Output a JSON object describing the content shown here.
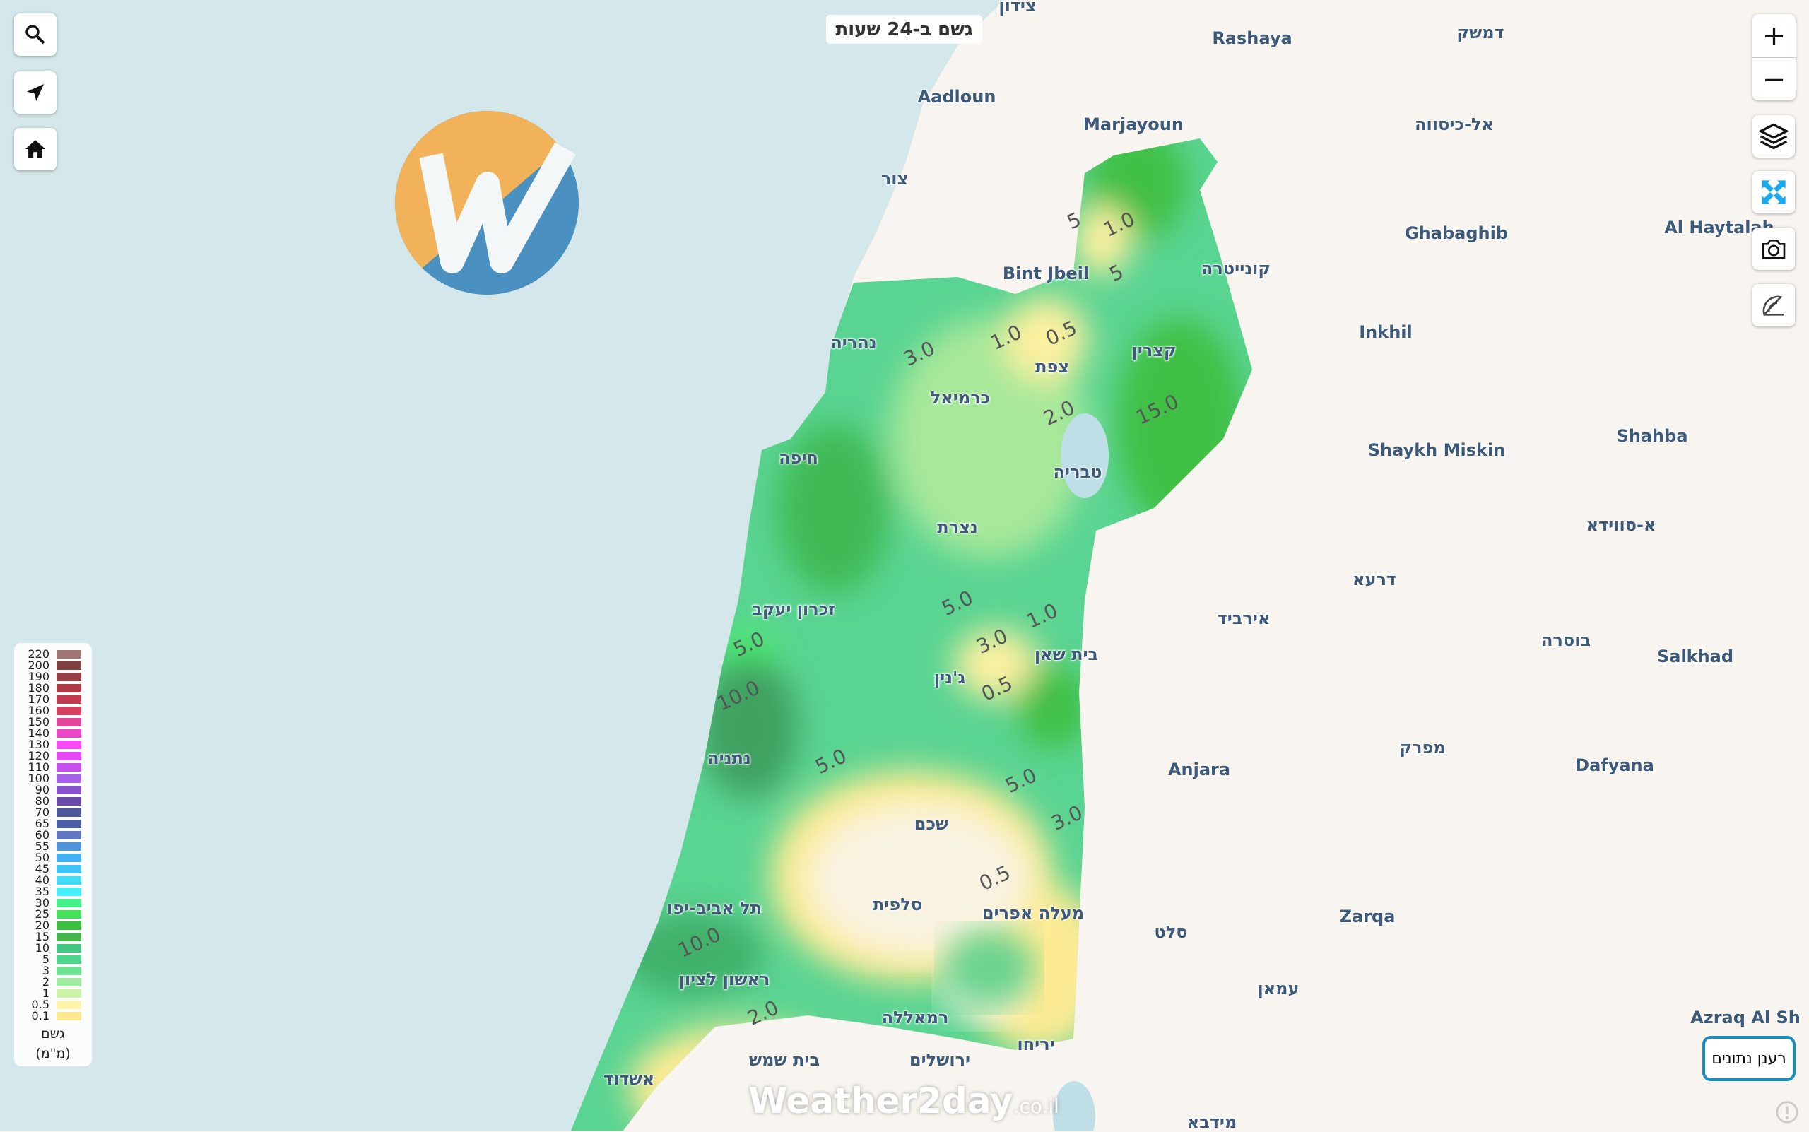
{
  "title": "גשם ב-24 שעות",
  "colors": {
    "sea": "#d4e7ea",
    "land": "#f8f4ef",
    "accent": "#1a8dc0",
    "fullscreen_icon": "#1aaaf0"
  },
  "left_controls": [
    {
      "icon": "search-icon"
    },
    {
      "icon": "locate-arrow-icon"
    },
    {
      "icon": "home-icon"
    }
  ],
  "right_controls": {
    "zoom_in": "+",
    "zoom_out": "−",
    "buttons": [
      {
        "icon": "layers-icon"
      },
      {
        "icon": "fullscreen-icon"
      },
      {
        "icon": "camera-icon"
      },
      {
        "icon": "protractor-icon"
      }
    ]
  },
  "legend": {
    "title": "גשם",
    "unit": "(מ\"מ)",
    "items": [
      {
        "v": "220",
        "c": "#a27575"
      },
      {
        "v": "200",
        "c": "#80403f"
      },
      {
        "v": "190",
        "c": "#9a3e45"
      },
      {
        "v": "180",
        "c": "#ae3a48"
      },
      {
        "v": "170",
        "c": "#c23a4f"
      },
      {
        "v": "160",
        "c": "#d6405e"
      },
      {
        "v": "150",
        "c": "#e2449a"
      },
      {
        "v": "140",
        "c": "#ec46c6"
      },
      {
        "v": "130",
        "c": "#fb4af8"
      },
      {
        "v": "120",
        "c": "#e548f4"
      },
      {
        "v": "110",
        "c": "#c94ef0"
      },
      {
        "v": "100",
        "c": "#a55fe8"
      },
      {
        "v": "90",
        "c": "#8854cc"
      },
      {
        "v": "80",
        "c": "#6c4aa8"
      },
      {
        "v": "70",
        "c": "#4d569a"
      },
      {
        "v": "65",
        "c": "#4a5ea8"
      },
      {
        "v": "60",
        "c": "#6177c0"
      },
      {
        "v": "55",
        "c": "#4f94d8"
      },
      {
        "v": "50",
        "c": "#3fb0f4"
      },
      {
        "v": "45",
        "c": "#3ec4f6"
      },
      {
        "v": "40",
        "c": "#40dcfa"
      },
      {
        "v": "35",
        "c": "#44eefa"
      },
      {
        "v": "30",
        "c": "#46f08a"
      },
      {
        "v": "25",
        "c": "#46e05a"
      },
      {
        "v": "20",
        "c": "#3cc040"
      },
      {
        "v": "15",
        "c": "#46b44a"
      },
      {
        "v": "10",
        "c": "#46c482"
      },
      {
        "v": "5",
        "c": "#4cd68c"
      },
      {
        "v": "3",
        "c": "#6ee092"
      },
      {
        "v": "2",
        "c": "#a2eaa0"
      },
      {
        "v": "1",
        "c": "#ccf4a6"
      },
      {
        "v": "0.5",
        "c": "#fdf4aa"
      },
      {
        "v": "0.1",
        "c": "#fde890"
      }
    ]
  },
  "places": [
    "צידון",
    "Rashaya",
    "דמשק",
    "Aadloun",
    "Marjayoun",
    "אל-כיסווה",
    "צור",
    "Ghabaghib",
    "Al Haytalah",
    "Bint Jbeil",
    "קונייטרה",
    "Inkhil",
    "נהריה",
    "קצרין",
    "צפת",
    "כרמיאל",
    "Shaykh Miskin",
    "Shahba",
    "חיפה",
    "טבריה",
    "נצרת",
    "א-סווידא",
    "דרעא",
    "זכרון יעקב",
    "אירביד",
    "בית שאן",
    "בוסרה",
    "Salkhad",
    "ג'נין",
    "מפרק",
    "נתניה",
    "Anjara",
    "Dafyana",
    "שכם",
    "סלפית",
    "תל אביב-יפו",
    "מעלה אפרים",
    "Zarqa",
    "סלט",
    "ראשון לציון",
    "עמאן",
    "רמאללה",
    "Azraq Al Sh",
    "יריחו",
    "אשדוד",
    "ירושלים",
    "בית שמש",
    "מידבא"
  ],
  "contour_labels": [
    "3.0",
    "1.0",
    "0.5",
    "2.0",
    "15.0",
    "5.0",
    "3.0",
    "1.0",
    "0.5",
    "5.0",
    "10.0",
    "5.0",
    "5.0",
    "3.0",
    "0.5",
    "10.0",
    "2.0",
    "1.0",
    "5",
    "5"
  ],
  "refresh_label": "רענן נתונים",
  "watermark": {
    "main": "Weather2day",
    "suffix": ".co.il"
  },
  "logo_letter": "W"
}
